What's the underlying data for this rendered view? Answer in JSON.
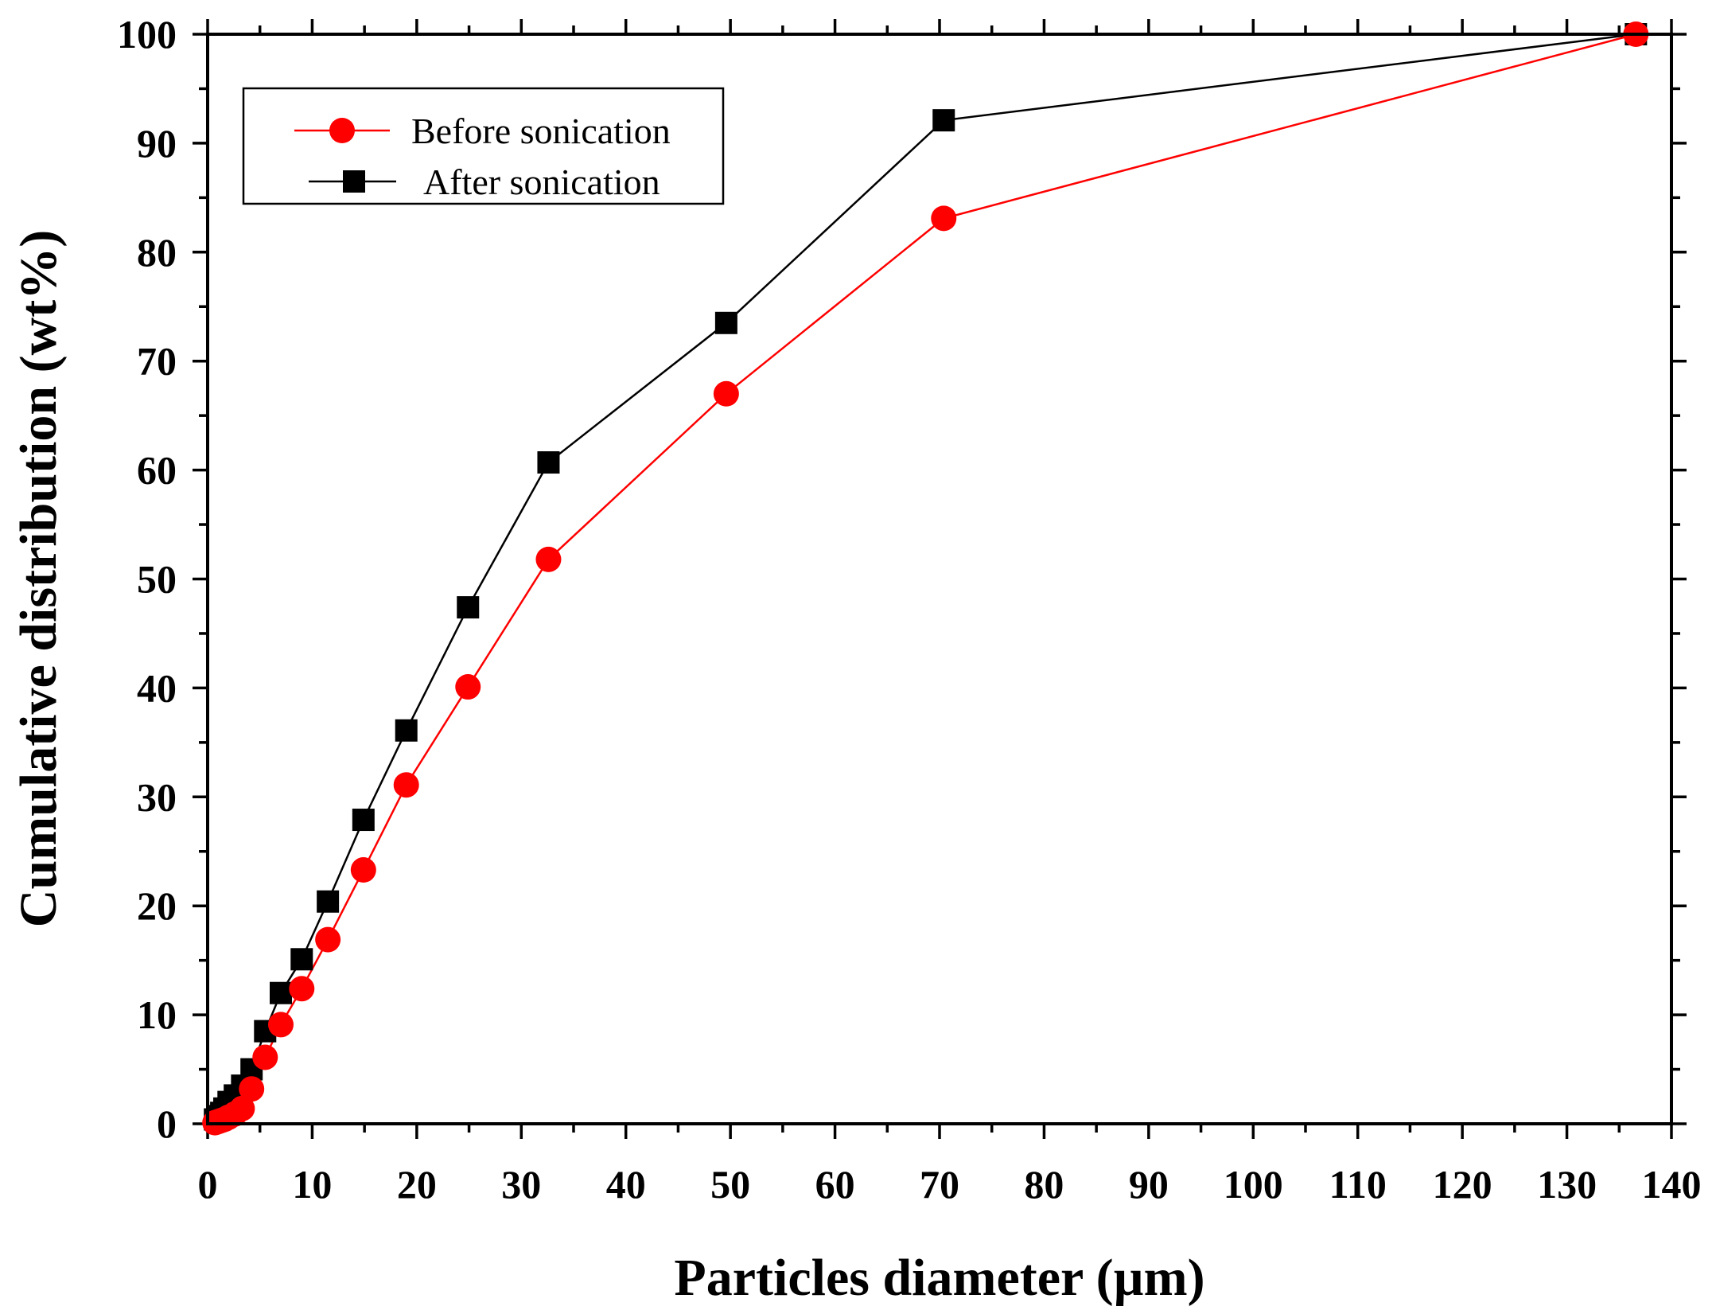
{
  "chart_data": {
    "type": "line",
    "title": "",
    "xlabel": "Particles diameter (µm)",
    "ylabel": "Cumulative distribution (wt%)",
    "xlim": [
      0,
      140
    ],
    "ylim": [
      0,
      100
    ],
    "xticks": [
      0,
      10,
      20,
      30,
      40,
      50,
      60,
      70,
      80,
      90,
      100,
      110,
      120,
      130,
      140
    ],
    "yticks": [
      0,
      10,
      20,
      30,
      40,
      50,
      60,
      70,
      80,
      90,
      100
    ],
    "grid": false,
    "legend_position": "top-left",
    "series": [
      {
        "name": "Before sonication",
        "color": "#ff0000",
        "marker": "circle",
        "x": [
          0.7,
          1.0,
          1.3,
          1.6,
          2.0,
          2.6,
          3.3,
          4.2,
          5.5,
          7.0,
          9.0,
          11.5,
          14.9,
          19.0,
          24.9,
          32.6,
          49.6,
          70.4,
          136.6
        ],
        "y": [
          0.1,
          0.2,
          0.3,
          0.4,
          0.6,
          0.9,
          1.4,
          3.2,
          6.1,
          9.1,
          12.4,
          16.9,
          23.3,
          31.1,
          40.1,
          51.8,
          67.0,
          83.1,
          100
        ]
      },
      {
        "name": "After sonication",
        "color": "#000000",
        "marker": "square",
        "x": [
          0.7,
          1.0,
          1.3,
          1.6,
          2.0,
          2.6,
          3.3,
          4.2,
          5.5,
          7.0,
          9.0,
          11.5,
          14.9,
          19.0,
          24.9,
          32.6,
          49.6,
          70.4,
          136.6
        ],
        "y": [
          0.4,
          0.7,
          1.0,
          1.4,
          2.0,
          2.6,
          3.5,
          5.0,
          8.5,
          12.0,
          15.1,
          20.4,
          27.9,
          36.1,
          47.4,
          60.7,
          73.5,
          92.1,
          100
        ]
      }
    ]
  }
}
